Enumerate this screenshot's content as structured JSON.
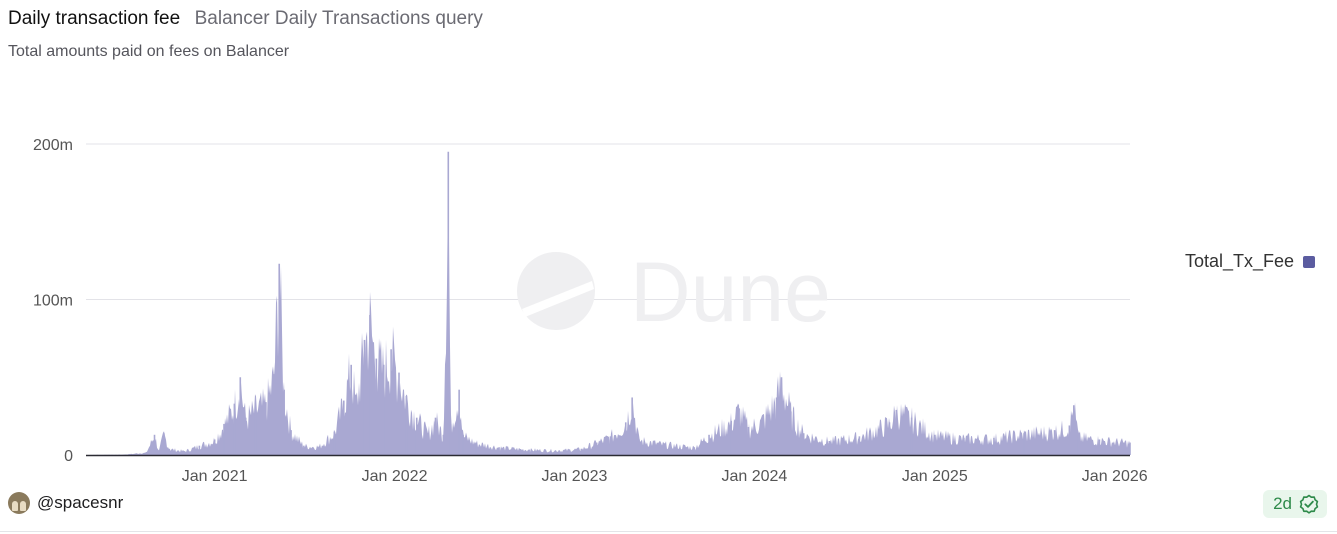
{
  "header": {
    "title": "Daily transaction fee",
    "query_name": "Balancer Daily Transactions query",
    "subtitle": "Total amounts paid on fees on Balancer"
  },
  "watermark": "Dune",
  "footer": {
    "author": "@spacesnr",
    "freshness": "2d"
  },
  "colors": {
    "series": "#a9a8d2",
    "legend": "#5b5ca0",
    "badge_text": "#2e8a4a",
    "grid": "#e3e3e8"
  },
  "chart_data": {
    "type": "area",
    "title": "",
    "xlabel": "",
    "ylabel": "",
    "x_ticks": [
      "Jan 2021",
      "Jan 2022",
      "Jan 2023",
      "Jan 2024",
      "Jan 2025",
      "Jan 2026"
    ],
    "y_ticks": [
      "0",
      "100m",
      "200m"
    ],
    "xlim": [
      "2020-04-15",
      "2026-02-01"
    ],
    "ylim": [
      0,
      200000000
    ],
    "grid": true,
    "legend_position": "right",
    "series": [
      {
        "name": "Total_Tx_Fee",
        "points": [
          [
            "2020-04-15",
            0
          ],
          [
            "2020-07-01",
            300000
          ],
          [
            "2020-08-15",
            1500000
          ],
          [
            "2020-09-01",
            13000000
          ],
          [
            "2020-09-10",
            2500000
          ],
          [
            "2020-09-20",
            14000000
          ],
          [
            "2020-10-01",
            4000000
          ],
          [
            "2020-11-01",
            2500000
          ],
          [
            "2020-12-01",
            6000000
          ],
          [
            "2021-01-01",
            10000000
          ],
          [
            "2021-01-20",
            20000000
          ],
          [
            "2021-02-10",
            33000000
          ],
          [
            "2021-02-22",
            50000000
          ],
          [
            "2021-03-05",
            24000000
          ],
          [
            "2021-03-25",
            31000000
          ],
          [
            "2021-04-15",
            34000000
          ],
          [
            "2021-05-01",
            52000000
          ],
          [
            "2021-05-12",
            123000000
          ],
          [
            "2021-05-22",
            42000000
          ],
          [
            "2021-06-05",
            16000000
          ],
          [
            "2021-07-01",
            6000000
          ],
          [
            "2021-08-01",
            5500000
          ],
          [
            "2021-09-01",
            15000000
          ],
          [
            "2021-09-20",
            35000000
          ],
          [
            "2021-10-05",
            58000000
          ],
          [
            "2021-10-15",
            33000000
          ],
          [
            "2021-11-01",
            74000000
          ],
          [
            "2021-11-12",
            90000000
          ],
          [
            "2021-11-25",
            62000000
          ],
          [
            "2021-12-10",
            58000000
          ],
          [
            "2021-12-25",
            68000000
          ],
          [
            "2022-01-10",
            53000000
          ],
          [
            "2022-01-25",
            38000000
          ],
          [
            "2022-02-15",
            24000000
          ],
          [
            "2022-03-10",
            14000000
          ],
          [
            "2022-03-25",
            24000000
          ],
          [
            "2022-04-10",
            13000000
          ],
          [
            "2022-04-20",
            195000000
          ],
          [
            "2022-04-25",
            20000000
          ],
          [
            "2022-05-12",
            42000000
          ],
          [
            "2022-05-20",
            13000000
          ],
          [
            "2022-06-15",
            8000000
          ],
          [
            "2022-08-01",
            5000000
          ],
          [
            "2022-10-01",
            3500000
          ],
          [
            "2022-12-01",
            3000000
          ],
          [
            "2023-01-15",
            4000000
          ],
          [
            "2023-02-15",
            8000000
          ],
          [
            "2023-03-15",
            12000000
          ],
          [
            "2023-04-15",
            21000000
          ],
          [
            "2023-04-28",
            37000000
          ],
          [
            "2023-05-12",
            10000000
          ],
          [
            "2023-07-01",
            7000000
          ],
          [
            "2023-09-01",
            5000000
          ],
          [
            "2023-10-01",
            13000000
          ],
          [
            "2023-11-15",
            22000000
          ],
          [
            "2023-12-01",
            30000000
          ],
          [
            "2023-12-20",
            18000000
          ],
          [
            "2024-01-15",
            22000000
          ],
          [
            "2024-02-15",
            37000000
          ],
          [
            "2024-02-25",
            50000000
          ],
          [
            "2024-03-15",
            28000000
          ],
          [
            "2024-04-10",
            14000000
          ],
          [
            "2024-06-01",
            9000000
          ],
          [
            "2024-08-01",
            12000000
          ],
          [
            "2024-10-01",
            21000000
          ],
          [
            "2024-10-15",
            29000000
          ],
          [
            "2024-11-15",
            24000000
          ],
          [
            "2025-01-01",
            13000000
          ],
          [
            "2025-03-01",
            11000000
          ],
          [
            "2025-05-01",
            11000000
          ],
          [
            "2025-07-01",
            14000000
          ],
          [
            "2025-09-01",
            16000000
          ],
          [
            "2025-10-01",
            19000000
          ],
          [
            "2025-10-10",
            32000000
          ],
          [
            "2025-10-20",
            12000000
          ],
          [
            "2025-12-01",
            10000000
          ],
          [
            "2026-02-01",
            8000000
          ]
        ]
      }
    ]
  }
}
